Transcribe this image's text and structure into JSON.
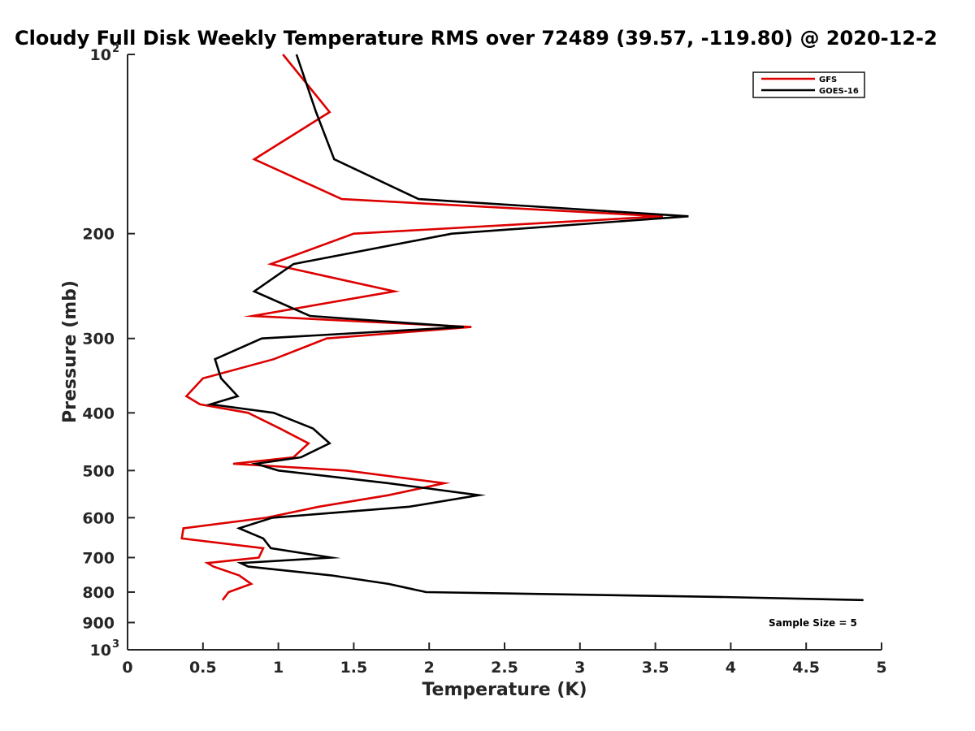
{
  "chart_data": {
    "type": "line",
    "title": "Cloudy Full Disk Weekly Temperature RMS over 72489 (39.57, -119.80) @ 2020-12-2",
    "xlabel": "Temperature (K)",
    "ylabel": "Pressure (mb)",
    "xlim": [
      0,
      5
    ],
    "ylim": [
      100,
      1000
    ],
    "y_scale": "log",
    "y_reversed": true,
    "grid": false,
    "legend_position": "top-right",
    "x_ticks": [
      {
        "value": 0,
        "label": "0"
      },
      {
        "value": 0.5,
        "label": "0.5"
      },
      {
        "value": 1,
        "label": "1"
      },
      {
        "value": 1.5,
        "label": "1.5"
      },
      {
        "value": 2,
        "label": "2"
      },
      {
        "value": 2.5,
        "label": "2.5"
      },
      {
        "value": 3,
        "label": "3"
      },
      {
        "value": 3.5,
        "label": "3.5"
      },
      {
        "value": 4,
        "label": "4"
      },
      {
        "value": 4.5,
        "label": "4.5"
      },
      {
        "value": 5,
        "label": "5"
      }
    ],
    "y_ticks": [
      {
        "value": 100,
        "base": "10",
        "exp": "2"
      },
      {
        "value": 200,
        "label": "200"
      },
      {
        "value": 300,
        "label": "300"
      },
      {
        "value": 400,
        "label": "400"
      },
      {
        "value": 500,
        "label": "500"
      },
      {
        "value": 600,
        "label": "600"
      },
      {
        "value": 700,
        "label": "700"
      },
      {
        "value": 800,
        "label": "800"
      },
      {
        "value": 900,
        "label": "900"
      },
      {
        "value": 1000,
        "base": "10",
        "exp": "3"
      }
    ],
    "series": [
      {
        "name": "GFS",
        "color": "#dd0000",
        "points": [
          [
            1.03,
            100
          ],
          [
            1.34,
            125
          ],
          [
            0.84,
            150
          ],
          [
            1.42,
            175
          ],
          [
            3.55,
            187
          ],
          [
            1.5,
            200
          ],
          [
            0.95,
            225
          ],
          [
            1.77,
            250
          ],
          [
            0.83,
            275
          ],
          [
            2.28,
            287
          ],
          [
            1.32,
            300
          ],
          [
            0.97,
            325
          ],
          [
            0.5,
            350
          ],
          [
            0.39,
            375
          ],
          [
            0.48,
            387
          ],
          [
            0.8,
            400
          ],
          [
            1.01,
            425
          ],
          [
            1.2,
            450
          ],
          [
            1.1,
            475
          ],
          [
            0.7,
            487
          ],
          [
            1.45,
            500
          ],
          [
            2.1,
            525
          ],
          [
            1.73,
            550
          ],
          [
            1.27,
            575
          ],
          [
            0.92,
            600
          ],
          [
            0.37,
            625
          ],
          [
            0.36,
            650
          ],
          [
            0.9,
            675
          ],
          [
            0.87,
            700
          ],
          [
            0.53,
            715
          ],
          [
            0.57,
            725
          ],
          [
            0.74,
            750
          ],
          [
            0.82,
            775
          ],
          [
            0.67,
            800
          ],
          [
            0.63,
            825
          ]
        ]
      },
      {
        "name": "GOES-16",
        "color": "#000000",
        "points": [
          [
            1.12,
            100
          ],
          [
            1.25,
            125
          ],
          [
            1.37,
            150
          ],
          [
            1.93,
            175
          ],
          [
            3.72,
            187
          ],
          [
            2.15,
            200
          ],
          [
            1.1,
            225
          ],
          [
            0.84,
            250
          ],
          [
            1.21,
            275
          ],
          [
            2.23,
            287
          ],
          [
            0.89,
            300
          ],
          [
            0.58,
            325
          ],
          [
            0.62,
            350
          ],
          [
            0.73,
            375
          ],
          [
            0.55,
            387
          ],
          [
            0.97,
            400
          ],
          [
            1.23,
            425
          ],
          [
            1.34,
            450
          ],
          [
            1.15,
            475
          ],
          [
            0.85,
            487
          ],
          [
            1.0,
            500
          ],
          [
            1.73,
            525
          ],
          [
            2.33,
            550
          ],
          [
            1.87,
            575
          ],
          [
            0.96,
            600
          ],
          [
            0.74,
            625
          ],
          [
            0.9,
            650
          ],
          [
            0.95,
            675
          ],
          [
            1.35,
            700
          ],
          [
            0.75,
            715
          ],
          [
            0.8,
            725
          ],
          [
            1.35,
            750
          ],
          [
            1.73,
            775
          ],
          [
            1.98,
            800
          ],
          [
            3.92,
            815
          ],
          [
            4.88,
            825
          ]
        ]
      }
    ],
    "annotations": [
      {
        "text": "Sample Size = 5"
      }
    ]
  }
}
